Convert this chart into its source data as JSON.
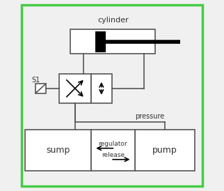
{
  "bg_color": "#f0f0f0",
  "border_color": "#44cc44",
  "line_color": "#555555",
  "text_color": "#333333",
  "cylinder_label": "cylinder",
  "sump_label": "sump",
  "pump_label": "pump",
  "pressure_label": "pressure",
  "regulator_label": "regulator",
  "release_label": "release",
  "s1_label": "S1"
}
